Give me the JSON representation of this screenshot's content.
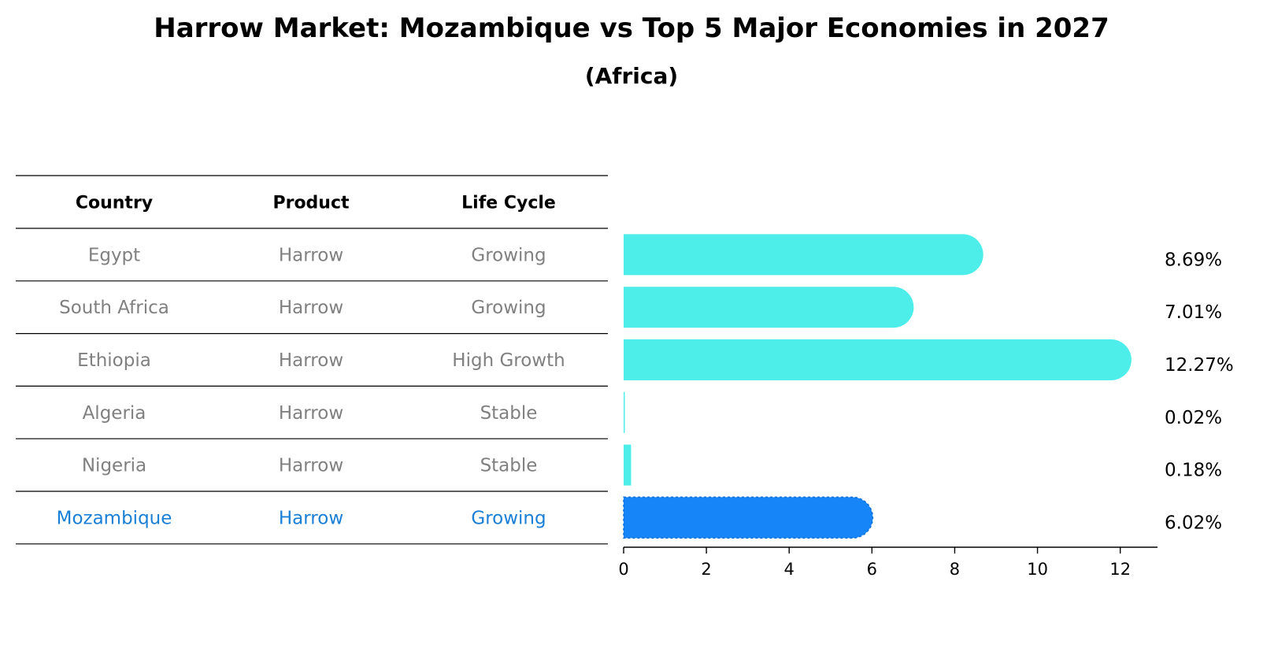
{
  "chart_data": {
    "type": "bar",
    "orientation": "horizontal",
    "title": "Harrow Market: Mozambique vs Top 5 Major Economies in 2027",
    "subtitle": "(Africa)",
    "table": {
      "columns": [
        "Country",
        "Product",
        "Life Cycle"
      ],
      "rows": [
        [
          "Egypt",
          "Harrow",
          "Growing"
        ],
        [
          "South Africa",
          "Harrow",
          "Growing"
        ],
        [
          "Ethiopia",
          "Harrow",
          "High Growth"
        ],
        [
          "Algeria",
          "Harrow",
          "Stable"
        ],
        [
          "Nigeria",
          "Harrow",
          "Stable"
        ],
        [
          "Mozambique",
          "Harrow",
          "Growing"
        ]
      ]
    },
    "categories": [
      "Egypt",
      "South Africa",
      "Ethiopia",
      "Algeria",
      "Nigeria",
      "Mozambique"
    ],
    "values": [
      8.69,
      7.01,
      12.27,
      0.02,
      0.18,
      6.02
    ],
    "value_labels": [
      "8.69%",
      "7.01%",
      "12.27%",
      "0.02%",
      "0.18%",
      "6.02%"
    ],
    "highlight": "Mozambique",
    "xlim": [
      0,
      12.9
    ],
    "xticks": [
      0,
      2,
      4,
      6,
      8,
      10,
      12
    ],
    "xtick_labels": [
      "0",
      "2",
      "4",
      "6",
      "8",
      "10",
      "12"
    ],
    "grid": false,
    "colors": {
      "bar": "#4deeea",
      "highlight_bar": "#1685f8",
      "table_text": "#808080",
      "highlight_text": "#1a7fd6"
    }
  }
}
